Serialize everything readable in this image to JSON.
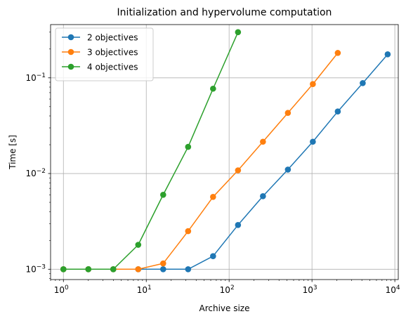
{
  "chart_data": {
    "type": "line",
    "title": "Initialization and hypervolume computation",
    "xlabel": "Archive size",
    "ylabel": "Time [s]",
    "xscale": "log",
    "yscale": "log",
    "xlim": [
      0.7,
      11000
    ],
    "ylim": [
      0.00078,
      0.36
    ],
    "grid": true,
    "legend_position": "top-left",
    "xticks": [
      {
        "value": 1,
        "base": "10",
        "exp": "0"
      },
      {
        "value": 10,
        "base": "10",
        "exp": "1"
      },
      {
        "value": 100,
        "base": "10",
        "exp": "2"
      },
      {
        "value": 1000,
        "base": "10",
        "exp": "3"
      },
      {
        "value": 10000,
        "base": "10",
        "exp": "4"
      }
    ],
    "yticks": [
      {
        "value": 0.001,
        "base": "10",
        "exp": "−3"
      },
      {
        "value": 0.01,
        "base": "10",
        "exp": "−2"
      },
      {
        "value": 0.1,
        "base": "10",
        "exp": "−1"
      }
    ],
    "series": [
      {
        "name": "2 objectives",
        "color": "#1f77b4",
        "x": [
          1,
          2,
          4,
          8,
          16,
          32,
          64,
          128,
          256,
          512,
          1024,
          2048,
          4096,
          8192
        ],
        "y": [
          0.001,
          0.001,
          0.001,
          0.001,
          0.001,
          0.001,
          0.00137,
          0.0029,
          0.0058,
          0.011,
          0.0215,
          0.0445,
          0.088,
          0.176
        ]
      },
      {
        "name": "3 objectives",
        "color": "#ff7f0e",
        "x": [
          1,
          2,
          4,
          8,
          16,
          32,
          64,
          128,
          256,
          512,
          1024,
          2048
        ],
        "y": [
          0.001,
          0.001,
          0.001,
          0.001,
          0.00115,
          0.0025,
          0.0057,
          0.0108,
          0.0215,
          0.043,
          0.086,
          0.182
        ]
      },
      {
        "name": "4 objectives",
        "color": "#2ca02c",
        "x": [
          1,
          2,
          4,
          8,
          16,
          32,
          64,
          128
        ],
        "y": [
          0.001,
          0.001,
          0.001,
          0.0018,
          0.006,
          0.019,
          0.077,
          0.3
        ]
      }
    ]
  }
}
